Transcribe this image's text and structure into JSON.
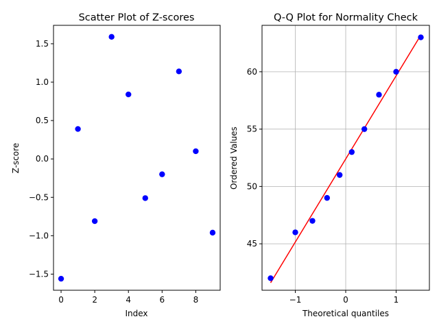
{
  "chart_data": [
    {
      "type": "scatter",
      "title": "Scatter Plot of Z-scores",
      "xlabel": "Index",
      "ylabel": "Z-score",
      "xlim": [
        -0.45,
        9.45
      ],
      "ylim": [
        -1.71,
        1.74
      ],
      "xticks": [
        0,
        2,
        4,
        6,
        8
      ],
      "xtick_labels": [
        "0",
        "2",
        "4",
        "6",
        "8"
      ],
      "yticks": [
        -1.5,
        -1.0,
        -0.5,
        0.0,
        0.5,
        1.0,
        1.5
      ],
      "ytick_labels": [
        "−1.5",
        "−1.0",
        "−0.5",
        "0.0",
        "0.5",
        "1.0",
        "1.5"
      ],
      "grid": false,
      "series": [
        {
          "color": "#0000ff",
          "x": [
            0,
            1,
            2,
            3,
            4,
            5,
            6,
            7,
            8,
            9
          ],
          "y": [
            -1.56,
            0.39,
            -0.81,
            1.59,
            0.84,
            -0.51,
            -0.2,
            1.14,
            0.1,
            -0.96
          ]
        }
      ]
    },
    {
      "type": "scatter",
      "title": "Q-Q Plot for Normality Check",
      "xlabel": "Theoretical quantiles",
      "ylabel": "Ordered Values",
      "xlim": [
        -1.66,
        1.66
      ],
      "ylim": [
        40.95,
        64.05
      ],
      "xticks": [
        -1,
        0,
        1
      ],
      "xtick_labels": [
        "−1",
        "0",
        "1"
      ],
      "yticks": [
        45,
        50,
        55,
        60
      ],
      "ytick_labels": [
        "45",
        "50",
        "55",
        "60"
      ],
      "grid": true,
      "series": [
        {
          "color": "#0000ff",
          "x": [
            -1.49,
            -1.0,
            -0.66,
            -0.37,
            -0.12,
            0.12,
            0.37,
            0.66,
            1.0,
            1.49
          ],
          "y": [
            42,
            46,
            47,
            49,
            51,
            53,
            55,
            58,
            60,
            63
          ]
        }
      ],
      "fit_line": {
        "color": "#ff0000",
        "x": [
          -1.49,
          1.49
        ],
        "y": [
          41.6,
          63.2
        ]
      }
    }
  ]
}
